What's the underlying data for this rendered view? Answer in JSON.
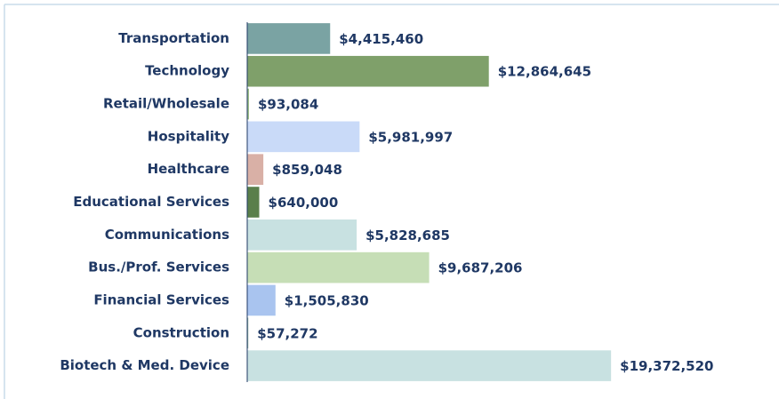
{
  "chart_data": {
    "type": "hbar",
    "categories": [
      "Transportation",
      "Technology",
      "Retail/Wholesale",
      "Hospitality",
      "Healthcare",
      "Educational Services",
      "Communications",
      "Bus./Prof. Services",
      "Financial Services",
      "Construction",
      "Biotech & Med. Device"
    ],
    "values": [
      4415460,
      12864645,
      93084,
      5981997,
      859048,
      640000,
      5828685,
      9687206,
      1505830,
      57272,
      19372520
    ],
    "value_labels": [
      "$4,415,460",
      "$12,864,645",
      "$93,084",
      "$5,981,997",
      "$859,048",
      "$640,000",
      "$5,828,685",
      "$9,687,206",
      "$1,505,830",
      "$57,272",
      "$19,372,520"
    ],
    "colors": [
      "#7aa3a3",
      "#7fa06a",
      "#9cbf86",
      "#c9daf8",
      "#d9b0a6",
      "#5a7f4b",
      "#c8e1e1",
      "#c6deb6",
      "#a9c4ef",
      "#8fb0a0",
      "#c8e1e1"
    ],
    "xlim": [
      0,
      25000000
    ]
  }
}
